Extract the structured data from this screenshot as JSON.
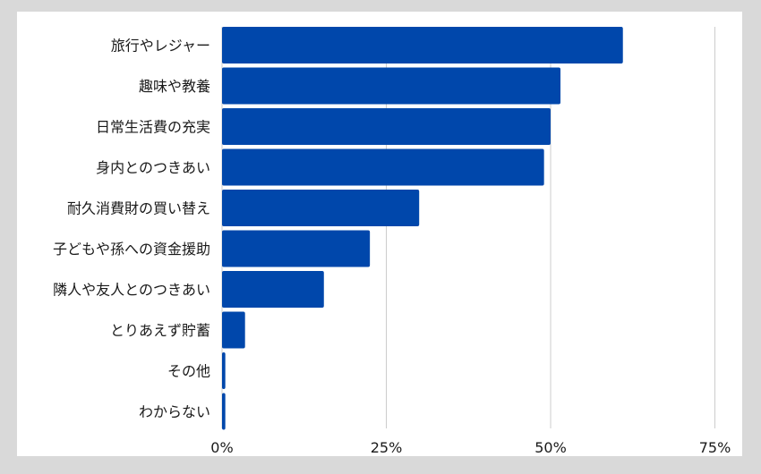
{
  "chart_data": {
    "type": "bar",
    "orientation": "horizontal",
    "categories": [
      "旅行やレジャー",
      "趣味や教養",
      "日常生活費の充実",
      "身内とのつきあい",
      "耐久消費財の買い替え",
      "子どもや孫への資金援助",
      "隣人や友人とのつきあい",
      "とりあえず貯蓄",
      "その他",
      "わからない"
    ],
    "values": [
      61,
      51.5,
      50,
      49,
      30,
      22.5,
      15.5,
      3.5,
      0.5,
      0.5
    ],
    "xlim": [
      0,
      75
    ],
    "xticks": [
      "0%",
      "25%",
      "50%",
      "75%"
    ],
    "tick_values": [
      0,
      25,
      50,
      75
    ],
    "grid": true,
    "bar_color": "#0047AB",
    "grid_color": "#cccccc",
    "background": "#ffffff",
    "frame_color": "#d9d9d9",
    "title": "",
    "xlabel": "",
    "ylabel": ""
  }
}
